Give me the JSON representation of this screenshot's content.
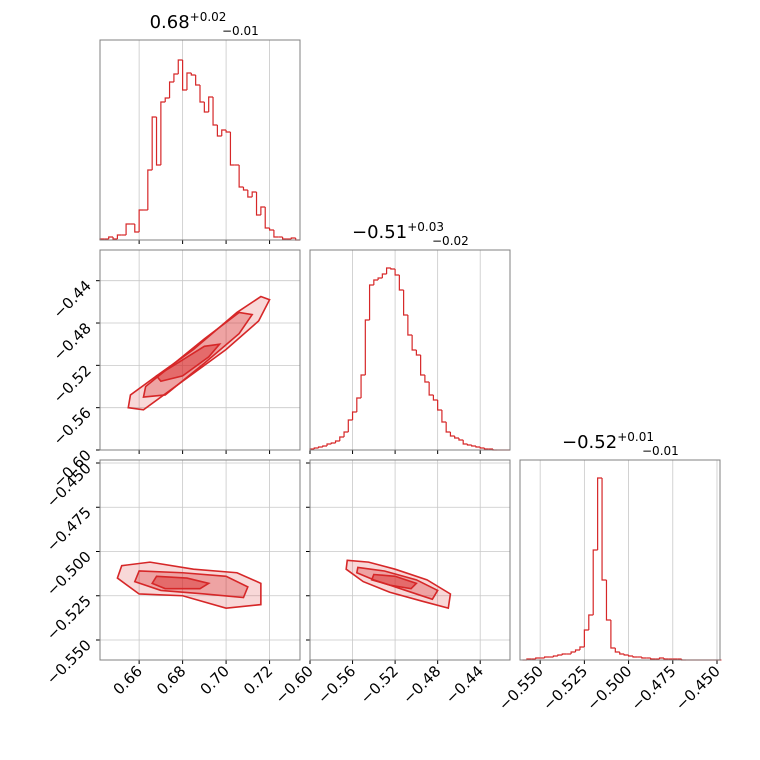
{
  "chart_data": [
    {
      "type": "histogram",
      "color": "#d62728",
      "grid": true,
      "title": "0.68",
      "title_upper": "+0.02",
      "title_lower": "−0.01",
      "bins": [
        0.642,
        0.644,
        0.646,
        0.648,
        0.65,
        0.652,
        0.654,
        0.656,
        0.658,
        0.66,
        0.662,
        0.664,
        0.666,
        0.668,
        0.67,
        0.672,
        0.674,
        0.676,
        0.678,
        0.68,
        0.682,
        0.684,
        0.686,
        0.688,
        0.69,
        0.692,
        0.694,
        0.696,
        0.698,
        0.7,
        0.702,
        0.704,
        0.706,
        0.708,
        0.71,
        0.712,
        0.714,
        0.716,
        0.718,
        0.72,
        0.722,
        0.724,
        0.726,
        0.728,
        0.73,
        0.732,
        0.734
      ],
      "counts": [
        1,
        1,
        3,
        1,
        5,
        5,
        16,
        16,
        8,
        30,
        30,
        70,
        123,
        75,
        138,
        142,
        158,
        166,
        180,
        150,
        167,
        165,
        155,
        138,
        128,
        143,
        115,
        104,
        110,
        108,
        75,
        75,
        53,
        50,
        43,
        48,
        25,
        33,
        12,
        10,
        3,
        3,
        1,
        1,
        2,
        0
      ],
      "xlim": [
        0.642,
        0.734
      ],
      "ylim": [
        0,
        200
      ],
      "xticks": [
        0.66,
        0.68,
        0.7,
        0.72
      ]
    },
    {
      "type": "contour",
      "color": "#d62728",
      "grid": true,
      "xlim": [
        0.642,
        0.734
      ],
      "ylim": [
        -0.6,
        -0.411
      ],
      "xticks": [
        0.66,
        0.68,
        0.7,
        0.72
      ],
      "yticks": [
        {
          "value": -0.44,
          "label": "−0.44"
        },
        {
          "value": -0.48,
          "label": "−0.48"
        },
        {
          "value": -0.52,
          "label": "−0.52"
        },
        {
          "value": -0.56,
          "label": "−0.56"
        },
        {
          "value": -0.6,
          "label": "−0.60"
        }
      ],
      "contours": [
        {
          "x": [
            0.655,
            0.662,
            0.68,
            0.7,
            0.715,
            0.72,
            0.716,
            0.705,
            0.685,
            0.668,
            0.656
          ],
          "y": [
            -0.56,
            -0.562,
            -0.535,
            -0.505,
            -0.478,
            -0.458,
            -0.455,
            -0.47,
            -0.505,
            -0.53,
            -0.548
          ]
        },
        {
          "x": [
            0.662,
            0.672,
            0.69,
            0.706,
            0.712,
            0.706,
            0.69,
            0.672,
            0.663
          ],
          "y": [
            -0.55,
            -0.548,
            -0.518,
            -0.49,
            -0.472,
            -0.47,
            -0.495,
            -0.525,
            -0.54
          ]
        },
        {
          "x": [
            0.67,
            0.68,
            0.692,
            0.697,
            0.69,
            0.676,
            0.668
          ],
          "y": [
            -0.535,
            -0.53,
            -0.512,
            -0.5,
            -0.502,
            -0.52,
            -0.53
          ]
        }
      ]
    },
    {
      "type": "histogram",
      "color": "#d62728",
      "grid": true,
      "title": "−0.51",
      "title_upper": "+0.03",
      "title_lower": "−0.02",
      "bins": [
        -0.6,
        -0.596,
        -0.592,
        -0.588,
        -0.584,
        -0.58,
        -0.576,
        -0.572,
        -0.568,
        -0.564,
        -0.56,
        -0.556,
        -0.552,
        -0.548,
        -0.544,
        -0.54,
        -0.536,
        -0.532,
        -0.528,
        -0.524,
        -0.52,
        -0.516,
        -0.512,
        -0.508,
        -0.504,
        -0.5,
        -0.496,
        -0.492,
        -0.488,
        -0.484,
        -0.48,
        -0.476,
        -0.472,
        -0.468,
        -0.464,
        -0.46,
        -0.456,
        -0.452,
        -0.448,
        -0.444,
        -0.44,
        -0.436,
        -0.432,
        -0.428,
        -0.424,
        -0.42,
        -0.416,
        -0.412
      ],
      "counts": [
        1,
        2,
        3,
        4,
        6,
        7,
        9,
        13,
        18,
        30,
        38,
        52,
        75,
        130,
        165,
        170,
        172,
        176,
        182,
        181,
        175,
        160,
        135,
        115,
        100,
        95,
        75,
        68,
        55,
        50,
        40,
        28,
        18,
        14,
        12,
        10,
        6,
        5,
        4,
        3,
        2,
        1,
        1,
        0,
        0,
        0,
        0
      ],
      "xlim": [
        -0.6,
        -0.412
      ],
      "ylim": [
        0,
        200
      ],
      "xticks": [
        -0.6,
        -0.56,
        -0.52,
        -0.48,
        -0.44
      ]
    },
    {
      "type": "contour",
      "color": "#d62728",
      "grid": true,
      "xlim": [
        0.642,
        0.734
      ],
      "ylim": [
        -0.5613,
        -0.4483
      ],
      "xticks": [
        0.66,
        0.68,
        {
          "value": 0.7,
          "label": "0.70"
        },
        0.72
      ],
      "yticks": [
        {
          "value": -0.45,
          "label": "−0.450"
        },
        {
          "value": -0.475,
          "label": "−0.475"
        },
        {
          "value": -0.5,
          "label": "−0.500"
        },
        {
          "value": -0.525,
          "label": "−0.525"
        },
        {
          "value": -0.55,
          "label": "−0.550"
        }
      ],
      "contours": [
        {
          "x": [
            0.652,
            0.665,
            0.685,
            0.705,
            0.716,
            0.716,
            0.7,
            0.68,
            0.66,
            0.65
          ],
          "y": [
            -0.508,
            -0.506,
            -0.51,
            -0.512,
            -0.518,
            -0.53,
            -0.532,
            -0.525,
            -0.524,
            -0.515
          ]
        },
        {
          "x": [
            0.66,
            0.68,
            0.7,
            0.71,
            0.708,
            0.69,
            0.67,
            0.658
          ],
          "y": [
            -0.511,
            -0.512,
            -0.514,
            -0.52,
            -0.526,
            -0.524,
            -0.522,
            -0.517
          ]
        },
        {
          "x": [
            0.668,
            0.682,
            0.692,
            0.688,
            0.672,
            0.666
          ],
          "y": [
            -0.514,
            -0.515,
            -0.518,
            -0.521,
            -0.521,
            -0.518
          ]
        }
      ]
    },
    {
      "type": "contour",
      "color": "#d62728",
      "grid": true,
      "xlim": [
        -0.6,
        -0.412
      ],
      "ylim": [
        -0.5613,
        -0.4483
      ],
      "xticks": [
        {
          "value": -0.6,
          "label": "−0.60"
        },
        {
          "value": -0.56,
          "label": "−0.56"
        },
        {
          "value": -0.52,
          "label": "−0.52"
        },
        {
          "value": -0.48,
          "label": "−0.48"
        },
        {
          "value": -0.44,
          "label": "−0.44"
        }
      ],
      "yticks": [
        -0.45,
        -0.475,
        -0.5,
        -0.525,
        -0.55
      ],
      "contours": [
        {
          "x": [
            -0.565,
            -0.545,
            -0.52,
            -0.49,
            -0.468,
            -0.47,
            -0.495,
            -0.525,
            -0.55,
            -0.566
          ],
          "y": [
            -0.505,
            -0.506,
            -0.51,
            -0.516,
            -0.524,
            -0.532,
            -0.528,
            -0.523,
            -0.517,
            -0.51
          ]
        },
        {
          "x": [
            -0.555,
            -0.53,
            -0.5,
            -0.48,
            -0.485,
            -0.51,
            -0.54,
            -0.556
          ],
          "y": [
            -0.509,
            -0.511,
            -0.516,
            -0.522,
            -0.527,
            -0.522,
            -0.516,
            -0.512
          ]
        },
        {
          "x": [
            -0.54,
            -0.52,
            -0.5,
            -0.505,
            -0.525,
            -0.542
          ],
          "y": [
            -0.513,
            -0.514,
            -0.518,
            -0.521,
            -0.519,
            -0.516
          ]
        }
      ]
    },
    {
      "type": "histogram",
      "color": "#d62728",
      "grid": true,
      "title": "−0.52",
      "title_upper": "+0.01",
      "title_lower": "−0.01",
      "bins": [
        -0.56,
        -0.5575,
        -0.555,
        -0.5525,
        -0.55,
        -0.5475,
        -0.545,
        -0.5425,
        -0.54,
        -0.5375,
        -0.535,
        -0.5325,
        -0.53,
        -0.5275,
        -0.525,
        -0.5225,
        -0.52,
        -0.5175,
        -0.515,
        -0.5125,
        -0.51,
        -0.5075,
        -0.505,
        -0.5025,
        -0.5,
        -0.4975,
        -0.495,
        -0.4925,
        -0.49,
        -0.4875,
        -0.485,
        -0.4825,
        -0.48,
        -0.4775,
        -0.475,
        -0.4725,
        -0.47,
        -0.4675,
        -0.465,
        -0.4625,
        -0.46,
        -0.4575,
        -0.455,
        -0.4525,
        -0.45,
        -0.4475
      ],
      "counts": [
        0,
        1,
        1,
        2,
        2,
        3,
        3,
        4,
        5,
        6,
        6,
        8,
        10,
        13,
        30,
        45,
        110,
        182,
        80,
        40,
        12,
        8,
        6,
        5,
        4,
        3,
        3,
        2,
        2,
        1,
        1,
        2,
        1,
        1,
        1,
        1,
        0,
        0,
        0,
        0,
        0,
        0,
        0,
        0,
        0
      ],
      "xlim": [
        -0.5614,
        -0.4483
      ],
      "ylim": [
        0,
        200
      ],
      "xticks": [
        {
          "value": -0.55,
          "label": "−0.550"
        },
        {
          "value": -0.525,
          "label": "−0.525"
        },
        {
          "value": -0.5,
          "label": "−0.500"
        },
        {
          "value": -0.475,
          "label": "−0.475"
        },
        {
          "value": -0.45,
          "label": "−0.450"
        }
      ]
    }
  ]
}
